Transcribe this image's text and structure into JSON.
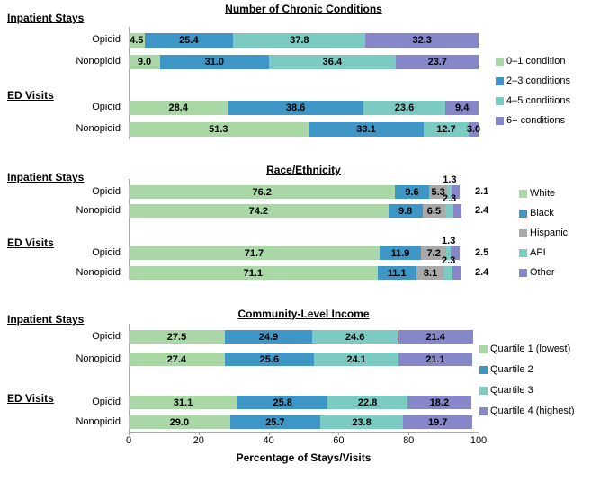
{
  "colors": {
    "green": "#a9d8a6",
    "blue": "#3e96c6",
    "teal": "#7ccbc2",
    "purple": "#8687c8",
    "gray": "#a9a9a9",
    "axis_line": "#a6a6a6"
  },
  "x_axis": {
    "label": "Percentage of Stays/Visits",
    "ticks": [
      "0",
      "20",
      "40",
      "60",
      "80",
      "100"
    ],
    "min": 0,
    "max": 100
  },
  "chart_data": [
    {
      "type": "bar",
      "orientation": "horizontal",
      "stacked": true,
      "title": "Number of Chronic Conditions",
      "xlim": [
        0,
        100
      ],
      "legend_position": "right",
      "series": [
        {
          "name": "0–1 condition",
          "color": "#a9d8a6"
        },
        {
          "name": "2–3 conditions",
          "color": "#3e96c6"
        },
        {
          "name": "4–5 conditions",
          "color": "#7ccbc2"
        },
        {
          "name": "6+ conditions",
          "color": "#8687c8"
        }
      ],
      "groups": [
        {
          "label": "Inpatient Stays",
          "rows": [
            {
              "label": "Opioid",
              "values": [
                4.5,
                25.4,
                37.8,
                32.3
              ],
              "labels": [
                "4.5",
                "25.4",
                "37.8",
                "32.3"
              ]
            },
            {
              "label": "Nonopioid",
              "values": [
                9.0,
                31.0,
                36.4,
                23.7
              ],
              "labels": [
                "9.0",
                "31.0",
                "36.4",
                "23.7"
              ]
            }
          ]
        },
        {
          "label": "ED Visits",
          "rows": [
            {
              "label": "Opioid",
              "values": [
                28.4,
                38.6,
                23.6,
                9.4
              ],
              "labels": [
                "28.4",
                "38.6",
                "23.6",
                "9.4"
              ]
            },
            {
              "label": "Nonopioid",
              "values": [
                51.3,
                33.1,
                12.7,
                3.0
              ],
              "labels": [
                "51.3",
                "33.1",
                "12.7",
                "3.0"
              ]
            }
          ]
        }
      ]
    },
    {
      "type": "bar",
      "orientation": "horizontal",
      "stacked": true,
      "title": "Race/Ethnicity",
      "xlim": [
        0,
        100
      ],
      "legend_position": "right",
      "series": [
        {
          "name": "White",
          "color": "#a9d8a6"
        },
        {
          "name": "Black",
          "color": "#3e96c6"
        },
        {
          "name": "Hispanic",
          "color": "#a9a9a9"
        },
        {
          "name": "API",
          "color": "#7ccbc2"
        },
        {
          "name": "Other",
          "color": "#8687c8"
        }
      ],
      "groups": [
        {
          "label": "Inpatient Stays",
          "rows": [
            {
              "label": "Opioid",
              "values": [
                76.2,
                9.6,
                5.3,
                1.3,
                2.1
              ],
              "labels": [
                "76.2",
                "9.6",
                "5.3",
                "1.3",
                "2.1"
              ],
              "placements": [
                "inside",
                "inside",
                "inside",
                "above",
                "right"
              ]
            },
            {
              "label": "Nonopioid",
              "values": [
                74.2,
                9.8,
                6.5,
                2.3,
                2.4
              ],
              "labels": [
                "74.2",
                "9.8",
                "6.5",
                "2.3",
                "2.4"
              ],
              "placements": [
                "inside",
                "inside",
                "inside",
                "above",
                "right"
              ]
            }
          ]
        },
        {
          "label": "ED Visits",
          "rows": [
            {
              "label": "Opioid",
              "values": [
                71.7,
                11.9,
                7.2,
                1.3,
                2.5
              ],
              "labels": [
                "71.7",
                "11.9",
                "7.2",
                "1.3",
                "2.5"
              ],
              "placements": [
                "inside",
                "inside",
                "inside",
                "above",
                "right"
              ]
            },
            {
              "label": "Nonopioid",
              "values": [
                71.1,
                11.1,
                8.1,
                2.3,
                2.4
              ],
              "labels": [
                "71.1",
                "11.1",
                "8.1",
                "2.3",
                "2.4"
              ],
              "placements": [
                "inside",
                "inside",
                "inside",
                "above",
                "right"
              ]
            }
          ]
        }
      ]
    },
    {
      "type": "bar",
      "orientation": "horizontal",
      "stacked": true,
      "title": "Community-Level Income",
      "xlim": [
        0,
        100
      ],
      "legend_position": "right",
      "series": [
        {
          "name": "Quartile 1 (lowest)",
          "color": "#a9d8a6"
        },
        {
          "name": "Quartile 2",
          "color": "#3e96c6"
        },
        {
          "name": "Quartile 3",
          "color": "#7ccbc2"
        },
        {
          "name": "Quartile 4 (highest)",
          "color": "#8687c8"
        }
      ],
      "groups": [
        {
          "label": "Inpatient Stays",
          "rows": [
            {
              "label": "Opioid",
              "values": [
                27.5,
                24.9,
                24.6,
                21.4
              ],
              "labels": [
                "27.5",
                "24.9",
                "24.6",
                "21.4"
              ]
            },
            {
              "label": "Nonopioid",
              "values": [
                27.4,
                25.6,
                24.1,
                21.1
              ],
              "labels": [
                "27.4",
                "25.6",
                "24.1",
                "21.1"
              ]
            }
          ]
        },
        {
          "label": "ED Visits",
          "rows": [
            {
              "label": "Opioid",
              "values": [
                31.1,
                25.8,
                22.8,
                18.2
              ],
              "labels": [
                "31.1",
                "25.8",
                "22.8",
                "18.2"
              ]
            },
            {
              "label": "Nonopioid",
              "values": [
                29.0,
                25.7,
                23.8,
                19.7
              ],
              "labels": [
                "29.0",
                "25.7",
                "23.8",
                "19.7"
              ]
            }
          ]
        }
      ]
    }
  ]
}
